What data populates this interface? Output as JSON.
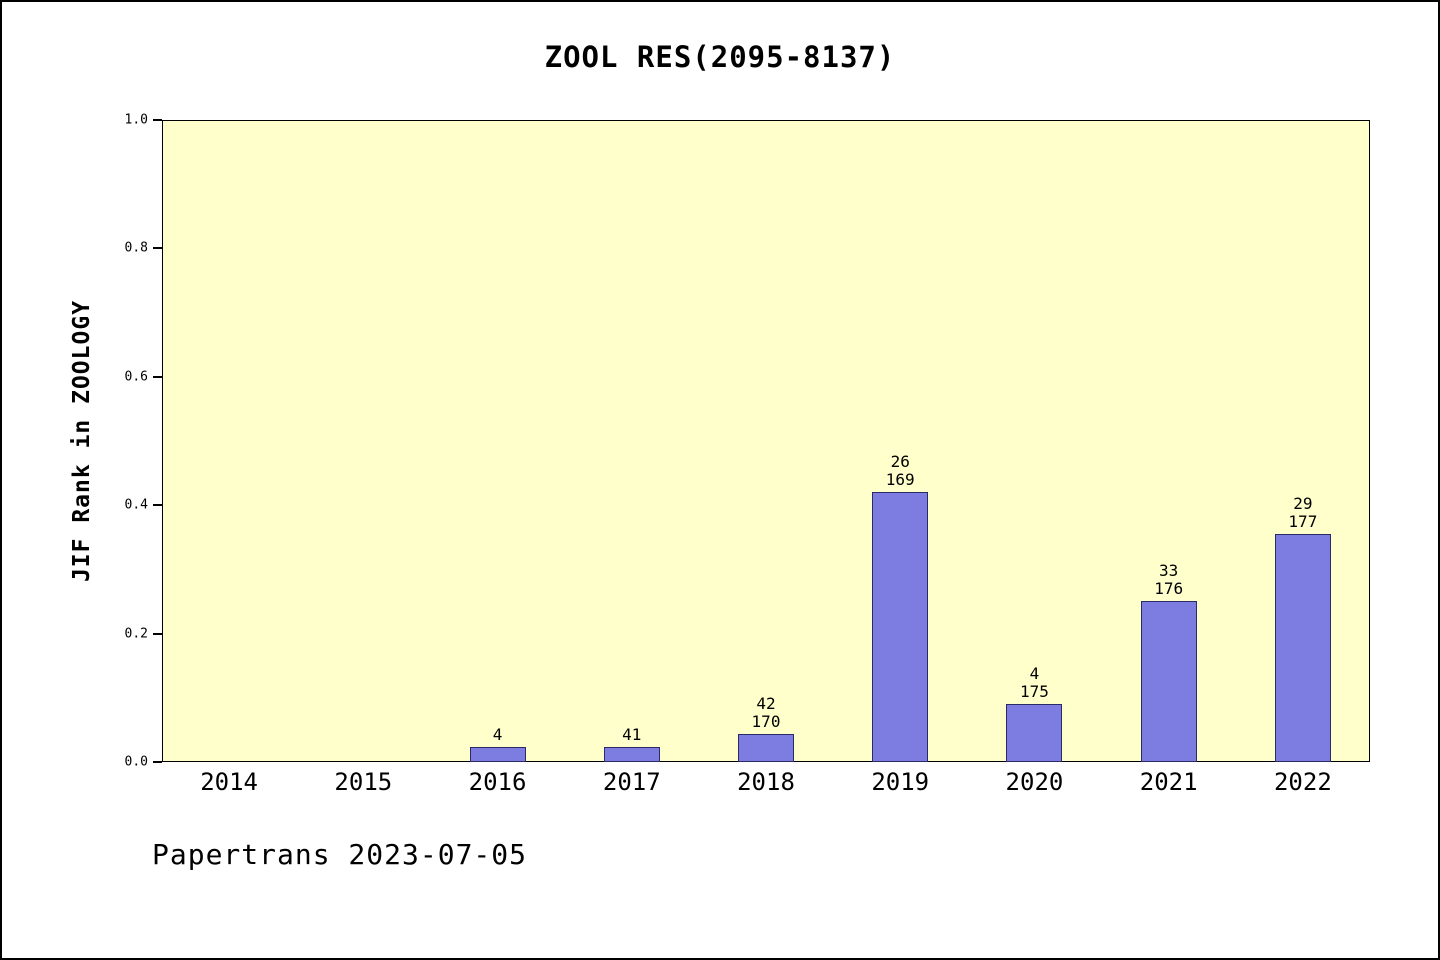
{
  "title": "ZOOL RES(2095-8137)",
  "footer": "Papertrans 2023-07-05",
  "chart_data": {
    "type": "bar",
    "title": "ZOOL RES(2095-8137)",
    "xlabel": "",
    "ylabel": "JIF Rank in ZOOLOGY",
    "ylim": [
      0,
      1.0
    ],
    "grid": false,
    "legend": "none",
    "yticks": [
      "0.0",
      "0.2",
      "0.4",
      "0.6",
      "0.8",
      "1.0"
    ],
    "categories": [
      "2014",
      "2015",
      "2016",
      "2017",
      "2018",
      "2019",
      "2020",
      "2021",
      "2022"
    ],
    "values": [
      0,
      0,
      0.023,
      0.023,
      0.044,
      0.42,
      0.09,
      0.25,
      0.355
    ],
    "bar_labels": [
      [],
      [],
      [
        "4"
      ],
      [
        "41"
      ],
      [
        "42",
        "170"
      ],
      [
        "26",
        "169"
      ],
      [
        "4",
        "175"
      ],
      [
        "33",
        "176"
      ],
      [
        "29",
        "177"
      ]
    ],
    "colors": {
      "plot_background": "#FFFFCC",
      "bar_fill": "#7D7DE1",
      "bar_border": "#2a2a66",
      "axis": "#000000"
    }
  }
}
